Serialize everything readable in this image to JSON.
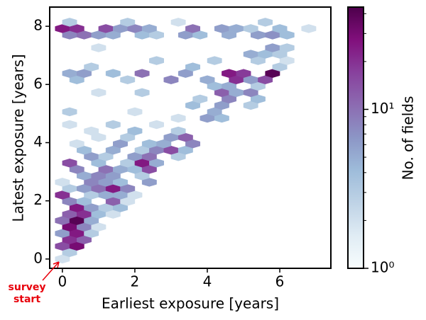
{
  "chart_data": {
    "type": "hexbin",
    "x_label": "Earliest exposure [years]",
    "y_label": "Latest exposure [years]",
    "colorbar_label": "No. of fields",
    "annotation": [
      "survey",
      "start"
    ],
    "xlim": [
      -0.35,
      7.41
    ],
    "ylim": [
      -0.32,
      8.66
    ],
    "xticks": [
      0,
      2,
      4,
      6
    ],
    "yticks": [
      0,
      2,
      4,
      6,
      8
    ],
    "clim": [
      1,
      44
    ],
    "color_scale": "log",
    "cticks": [
      {
        "value": 1,
        "label": "10⁰"
      },
      {
        "value": 10,
        "label": "10¹"
      }
    ],
    "cminor_ticks": [
      2,
      3,
      4,
      5,
      6,
      7,
      8,
      9,
      20,
      30,
      40
    ],
    "colormap": [
      "#f7fcfd",
      "#e0ecf4",
      "#bfd3e6",
      "#9ebcda",
      "#8c96c6",
      "#8c6bb1",
      "#88419d",
      "#810f7c",
      "#4d004b"
    ],
    "x": [
      0,
      0.2,
      0,
      0.4,
      0.2,
      0.6,
      0,
      0.4,
      0.8,
      0.2,
      0.6,
      1.0,
      0,
      0.4,
      0.8,
      0.2,
      0.6,
      1.0,
      1.4,
      0.4,
      0.8,
      1.2,
      1.6,
      0.2,
      0.6,
      1.4,
      1.8,
      0,
      0.8,
      1.2,
      1.6,
      2.0,
      0.2,
      0.6,
      1.0,
      1.4,
      1.8,
      0,
      0.8,
      1.2,
      1.6,
      2.4,
      0.6,
      1.0,
      1.4,
      2.2,
      0.4,
      1.2,
      1.6,
      2.0,
      2.4,
      0.2,
      1.0,
      1.8,
      2.2,
      2.6,
      0.8,
      1.2,
      2.0,
      2.4,
      3.2,
      0.6,
      1.4,
      2.2,
      2.6,
      3.0,
      3.4,
      0.4,
      1.6,
      2.4,
      2.8,
      3.6,
      1.0,
      1.8,
      3.0,
      3.4,
      0.8,
      2.0,
      3.2,
      0.2,
      1.4,
      2.6,
      3.2,
      4.0,
      4.4,
      0.2,
      2.0,
      4.2,
      3.6,
      4.4,
      5.2,
      3.8,
      4.6,
      5.4,
      1.0,
      2.2,
      4.4,
      4.8,
      5.2,
      4.2,
      4.6,
      5.4,
      0.4,
      1.8,
      3.0,
      4.0,
      4.8,
      5.2,
      5.6,
      0.2,
      0.6,
      1.4,
      2.2,
      3.4,
      4.6,
      5.0,
      5.8,
      0.8,
      3.6,
      6.0,
      2.6,
      4.2,
      5.4,
      6.2,
      5.2,
      5.6,
      6.0,
      1.0,
      5.8,
      6.2,
      0.2,
      0.6,
      1.0,
      1.4,
      2.2,
      2.6,
      3.4,
      3.8,
      4.6,
      5.4,
      5.8,
      6.2,
      0,
      0.4,
      1.2,
      1.6,
      2.0,
      2.4,
      3.6,
      4.4,
      4.8,
      5.2,
      6.0,
      6.8,
      0.2,
      1.8,
      3.2,
      5.6
    ],
    "y": [
      0,
      0.22,
      0.44,
      0.44,
      0.66,
      0.66,
      0.88,
      0.88,
      0.88,
      1.1,
      1.1,
      1.1,
      1.32,
      1.32,
      1.32,
      1.54,
      1.54,
      1.54,
      1.54,
      1.76,
      1.76,
      1.76,
      1.76,
      1.98,
      1.98,
      1.98,
      1.98,
      2.2,
      2.2,
      2.2,
      2.2,
      2.2,
      2.42,
      2.42,
      2.42,
      2.42,
      2.42,
      2.64,
      2.64,
      2.64,
      2.64,
      2.64,
      2.86,
      2.86,
      2.86,
      2.86,
      3.08,
      3.08,
      3.08,
      3.08,
      3.08,
      3.3,
      3.3,
      3.3,
      3.3,
      3.3,
      3.52,
      3.52,
      3.52,
      3.52,
      3.52,
      3.74,
      3.74,
      3.74,
      3.74,
      3.74,
      3.74,
      3.96,
      3.96,
      3.96,
      3.96,
      3.96,
      4.18,
      4.18,
      4.18,
      4.18,
      4.4,
      4.4,
      4.4,
      4.62,
      4.62,
      4.62,
      4.84,
      4.84,
      4.84,
      5.06,
      5.06,
      5.06,
      5.28,
      5.28,
      5.28,
      5.5,
      5.5,
      5.5,
      5.72,
      5.72,
      5.72,
      5.72,
      5.72,
      5.94,
      5.94,
      5.94,
      6.16,
      6.16,
      6.16,
      6.16,
      6.16,
      6.16,
      6.16,
      6.38,
      6.38,
      6.38,
      6.38,
      6.38,
      6.38,
      6.38,
      6.38,
      6.6,
      6.6,
      6.6,
      6.82,
      6.82,
      6.82,
      6.82,
      7.04,
      7.04,
      7.04,
      7.26,
      7.26,
      7.26,
      7.7,
      7.7,
      7.7,
      7.7,
      7.7,
      7.7,
      7.7,
      7.7,
      7.7,
      7.7,
      7.7,
      7.7,
      7.92,
      7.92,
      7.92,
      7.92,
      7.92,
      7.92,
      7.92,
      7.92,
      7.92,
      7.92,
      7.92,
      7.92,
      8.14,
      8.14,
      8.14,
      8.14
    ],
    "values": [
      2,
      3,
      15,
      30,
      20,
      12,
      6,
      25,
      3,
      30,
      8,
      2,
      10,
      40,
      5,
      12,
      20,
      4,
      2,
      25,
      6,
      3,
      4,
      8,
      4,
      12,
      2,
      20,
      3,
      5,
      5,
      2,
      3,
      6,
      10,
      25,
      8,
      2,
      8,
      6,
      4,
      6,
      5,
      8,
      6,
      3,
      8,
      10,
      5,
      4,
      15,
      15,
      4,
      3,
      25,
      5,
      6,
      3,
      6,
      10,
      3,
      4,
      5,
      3,
      8,
      15,
      4,
      2,
      6,
      4,
      5,
      8,
      2,
      3,
      6,
      12,
      2,
      4,
      3,
      2,
      3,
      2,
      2,
      6,
      4,
      3,
      2,
      5,
      4,
      6,
      3,
      3,
      8,
      4,
      2,
      3,
      12,
      5,
      8,
      4,
      5,
      3,
      4,
      3,
      8,
      5,
      20,
      6,
      15,
      5,
      6,
      4,
      10,
      6,
      25,
      18,
      40,
      3,
      4,
      3,
      3,
      3,
      3,
      2,
      5,
      4,
      3,
      2,
      6,
      3,
      8,
      10,
      6,
      5,
      4,
      3,
      6,
      4,
      5,
      6,
      7,
      4,
      25,
      20,
      15,
      6,
      8,
      5,
      10,
      6,
      5,
      3,
      4,
      2,
      3,
      3,
      2,
      3
    ]
  }
}
